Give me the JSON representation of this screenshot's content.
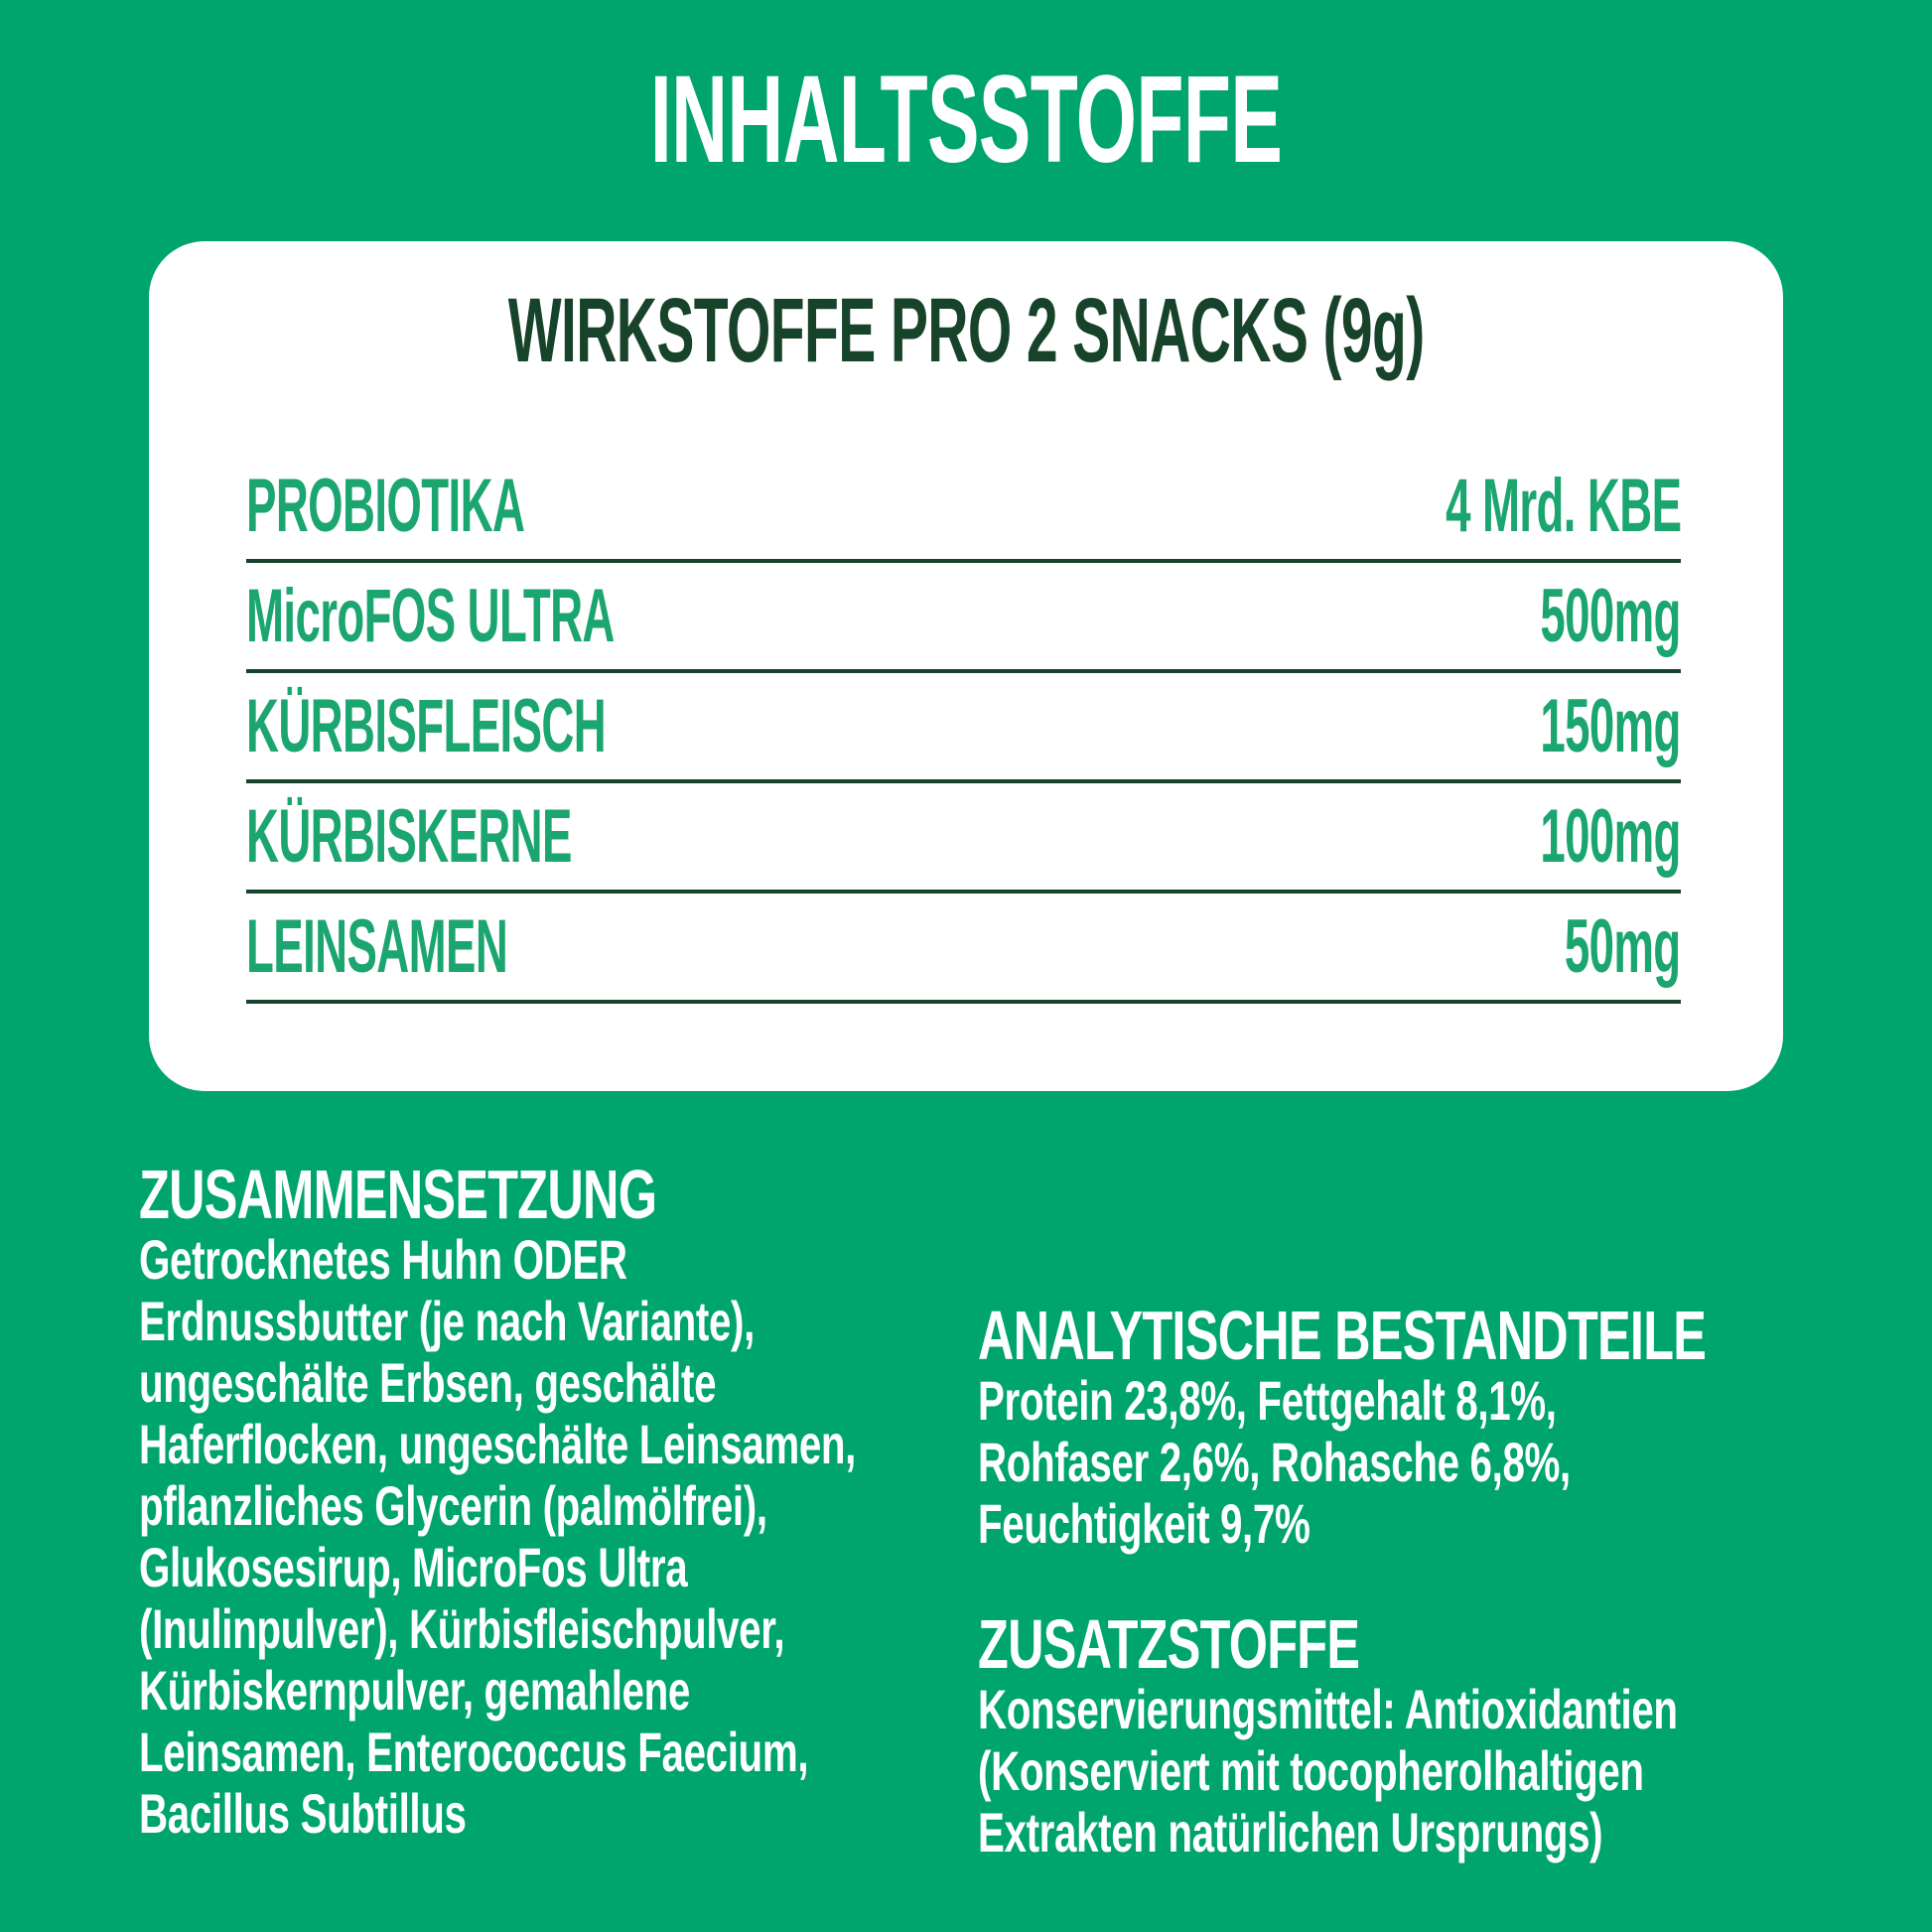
{
  "page": {
    "title": "INHALTSSTOFFE"
  },
  "card": {
    "title": "WIRKSTOFFE PRO 2 SNACKS (9g)",
    "rows": [
      {
        "label": "PROBIOTIKA",
        "value": "4 Mrd. KBE"
      },
      {
        "label": "MicroFOS ULTRA",
        "value": "500mg"
      },
      {
        "label": "KÜRBISFLEISCH",
        "value": "150mg"
      },
      {
        "label": "KÜRBISKERNE",
        "value": "100mg"
      },
      {
        "label": "LEINSAMEN",
        "value": "50mg"
      }
    ]
  },
  "sections": {
    "composition": {
      "heading": "ZUSAMMENSETZUNG",
      "lines": [
        "Getrocknetes Huhn ODER",
        "Erdnussbutter (je nach Variante),",
        "ungeschälte Erbsen, geschälte",
        "Haferflocken, ungeschälte Leinsamen,",
        "pflanzliches Glycerin (palmölfrei),",
        "Glukosesirup, MicroFos Ultra",
        "(Inulinpulver), Kürbisfleischpulver,",
        "Kürbiskernpulver, gemahlene",
        "Leinsamen, Enterococcus Faecium,",
        "Bacillus Subtillus"
      ]
    },
    "analytical": {
      "heading": "ANALYTISCHE BESTANDTEILE",
      "lines": [
        "Protein 23,8%, Fettgehalt 8,1%,",
        "Rohfaser 2,6%, Rohasche 6,8%,",
        "Feuchtigkeit 9,7%"
      ]
    },
    "additives": {
      "heading": "ZUSATZSTOFFE",
      "lines": [
        "Konservierungsmittel: Antioxidantien",
        "(Konserviert mit tocopherolhaltigen",
        "Extrakten natürlichen Ursprungs)"
      ]
    }
  },
  "colors": {
    "background": "#00A56E",
    "card_background": "#FFFFFF",
    "dark_green_text": "#17432B",
    "accent_green_text": "#1BA56F",
    "white_text": "#FFFFFF"
  }
}
